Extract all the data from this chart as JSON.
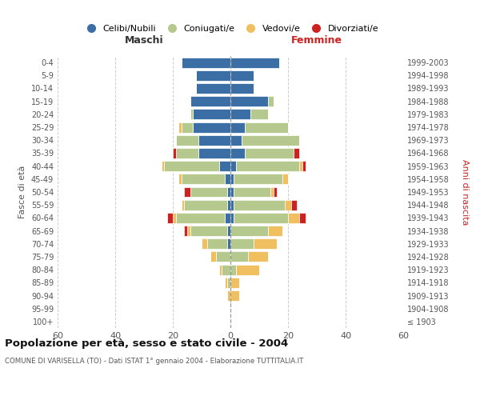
{
  "age_groups": [
    "100+",
    "95-99",
    "90-94",
    "85-89",
    "80-84",
    "75-79",
    "70-74",
    "65-69",
    "60-64",
    "55-59",
    "50-54",
    "45-49",
    "40-44",
    "35-39",
    "30-34",
    "25-29",
    "20-24",
    "15-19",
    "10-14",
    "5-9",
    "0-4"
  ],
  "birth_years": [
    "≤ 1903",
    "1904-1908",
    "1909-1913",
    "1914-1918",
    "1919-1923",
    "1924-1928",
    "1929-1933",
    "1934-1938",
    "1939-1943",
    "1944-1948",
    "1949-1953",
    "1954-1958",
    "1959-1963",
    "1964-1968",
    "1969-1973",
    "1974-1978",
    "1979-1983",
    "1984-1988",
    "1989-1993",
    "1994-1998",
    "1999-2003"
  ],
  "maschi": {
    "celibi": [
      0,
      0,
      0,
      0,
      0,
      0,
      1,
      1,
      2,
      1,
      1,
      2,
      4,
      11,
      11,
      13,
      13,
      14,
      12,
      12,
      17
    ],
    "coniugati": [
      0,
      0,
      0,
      1,
      3,
      5,
      7,
      13,
      17,
      15,
      13,
      15,
      19,
      8,
      8,
      4,
      1,
      0,
      0,
      0,
      0
    ],
    "vedovi": [
      0,
      0,
      1,
      1,
      1,
      2,
      2,
      1,
      1,
      1,
      0,
      1,
      1,
      0,
      0,
      1,
      0,
      0,
      0,
      0,
      0
    ],
    "divorziati": [
      0,
      0,
      0,
      0,
      0,
      0,
      0,
      1,
      2,
      0,
      2,
      0,
      0,
      1,
      0,
      0,
      0,
      0,
      0,
      0,
      0
    ]
  },
  "femmine": {
    "nubili": [
      0,
      0,
      0,
      0,
      0,
      0,
      0,
      0,
      1,
      1,
      1,
      1,
      2,
      5,
      4,
      5,
      7,
      13,
      8,
      8,
      17
    ],
    "coniugate": [
      0,
      0,
      0,
      0,
      2,
      6,
      8,
      13,
      19,
      18,
      13,
      17,
      22,
      17,
      20,
      15,
      6,
      2,
      0,
      0,
      0
    ],
    "vedove": [
      0,
      0,
      3,
      3,
      8,
      7,
      8,
      5,
      4,
      2,
      1,
      2,
      1,
      0,
      0,
      0,
      0,
      0,
      0,
      0,
      0
    ],
    "divorziate": [
      0,
      0,
      0,
      0,
      0,
      0,
      0,
      0,
      2,
      2,
      1,
      0,
      1,
      2,
      0,
      0,
      0,
      0,
      0,
      0,
      0
    ]
  },
  "colors": {
    "celibi": "#3a6ea5",
    "coniugati": "#b5c98e",
    "vedovi": "#f0c060",
    "divorziati": "#cc2222"
  },
  "xlim": 60,
  "title": "Popolazione per età, sesso e stato civile - 2004",
  "subtitle": "COMUNE DI VARISELLA (TO) - Dati ISTAT 1° gennaio 2004 - Elaborazione TUTTITALIA.IT",
  "ylabel_left": "Fasce di età",
  "ylabel_right": "Anni di nascita",
  "xlabel_maschi": "Maschi",
  "xlabel_femmine": "Femmine",
  "legend_labels": [
    "Celibi/Nubili",
    "Coniugati/e",
    "Vedovi/e",
    "Divorziati/e"
  ],
  "background_color": "#ffffff"
}
